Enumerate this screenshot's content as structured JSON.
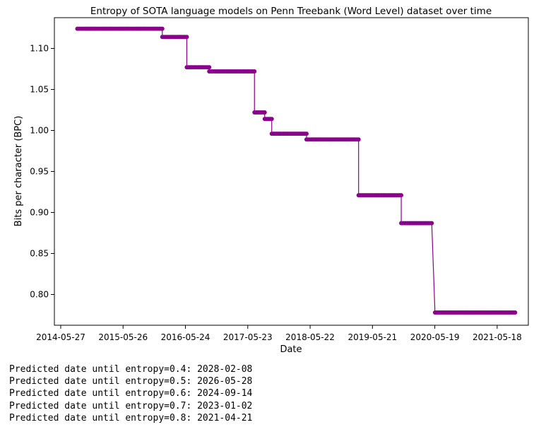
{
  "chart_data": {
    "type": "line",
    "title": "Entropy of SOTA language models on Penn Treebank (Word Level) dataset over time",
    "xlabel": "Date",
    "ylabel": "Bits per character (BPC)",
    "xlim": [
      "2014-04-20",
      "2021-11-16"
    ],
    "ylim": [
      0.7625,
      1.1375
    ],
    "x_ticks": [
      "2014-05-27",
      "2015-05-26",
      "2016-05-24",
      "2017-05-23",
      "2018-05-22",
      "2019-05-21",
      "2020-05-19",
      "2021-05-18"
    ],
    "y_ticks": [
      "0.80",
      "0.85",
      "0.90",
      "0.95",
      "1.00",
      "1.05",
      "1.10"
    ],
    "grid": false,
    "color": "#8b008b",
    "series": [
      {
        "points": [
          [
            "2014-09-01",
            1.124
          ],
          [
            "2016-01-10",
            1.124
          ],
          [
            "2016-01-10",
            1.114
          ],
          [
            "2016-06-01",
            1.114
          ],
          [
            "2016-06-01",
            1.077
          ],
          [
            "2016-10-10",
            1.077
          ],
          [
            "2016-10-10",
            1.072
          ],
          [
            "2017-07-01",
            1.072
          ],
          [
            "2017-07-01",
            1.022
          ],
          [
            "2017-08-30",
            1.022
          ],
          [
            "2017-08-30",
            1.014
          ],
          [
            "2017-10-10",
            1.014
          ],
          [
            "2017-10-10",
            0.996
          ],
          [
            "2018-05-01",
            0.996
          ],
          [
            "2018-05-01",
            0.989
          ],
          [
            "2019-03-01",
            0.989
          ],
          [
            "2019-03-01",
            0.921
          ],
          [
            "2019-11-05",
            0.921
          ],
          [
            "2019-11-05",
            0.887
          ],
          [
            "2020-05-01",
            0.887
          ],
          [
            "2020-05-20",
            0.778
          ],
          [
            "2021-08-31",
            0.778
          ]
        ]
      }
    ]
  },
  "predictions": [
    "Predicted date until entropy=0.4: 2028-02-08",
    "Predicted date until entropy=0.5: 2026-05-28",
    "Predicted date until entropy=0.6: 2024-09-14",
    "Predicted date until entropy=0.7: 2023-01-02",
    "Predicted date until entropy=0.8: 2021-04-21"
  ]
}
